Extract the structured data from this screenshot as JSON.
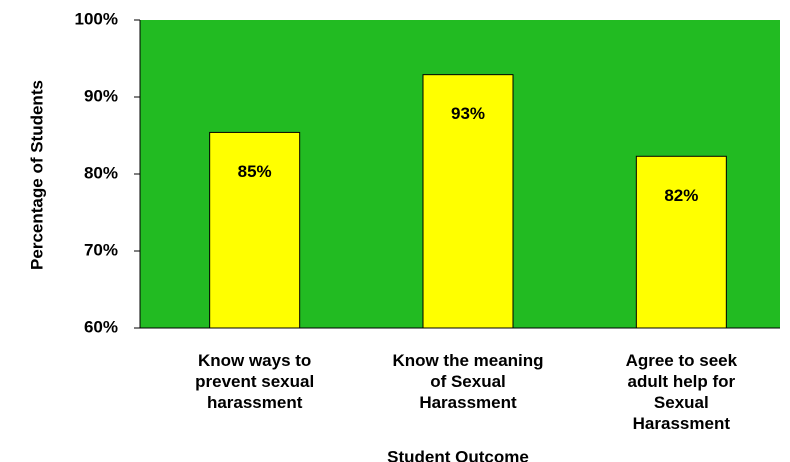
{
  "chart_data": {
    "type": "bar",
    "categories": [
      "Know ways to\nprevent sexual\nharassment",
      "Know the meaning\nof Sexual\nHarassment",
      "Agree to seek\nadult help for\nSexual\nHarassment"
    ],
    "values": [
      85.4,
      92.9,
      82.3
    ],
    "value_labels": [
      "85%",
      "93%",
      "82%"
    ],
    "color": "#ffff00",
    "plot_background": "#22bb22",
    "ylim": [
      60,
      100
    ],
    "yticks": [
      {
        "value": 60,
        "label": "60%"
      },
      {
        "value": 70,
        "label": "70%"
      },
      {
        "value": 80,
        "label": "80%"
      },
      {
        "value": 90,
        "label": "90%"
      },
      {
        "value": 100,
        "label": "100%"
      }
    ],
    "y_label": "Percentage of Students",
    "x_label": "Student Outcome"
  }
}
